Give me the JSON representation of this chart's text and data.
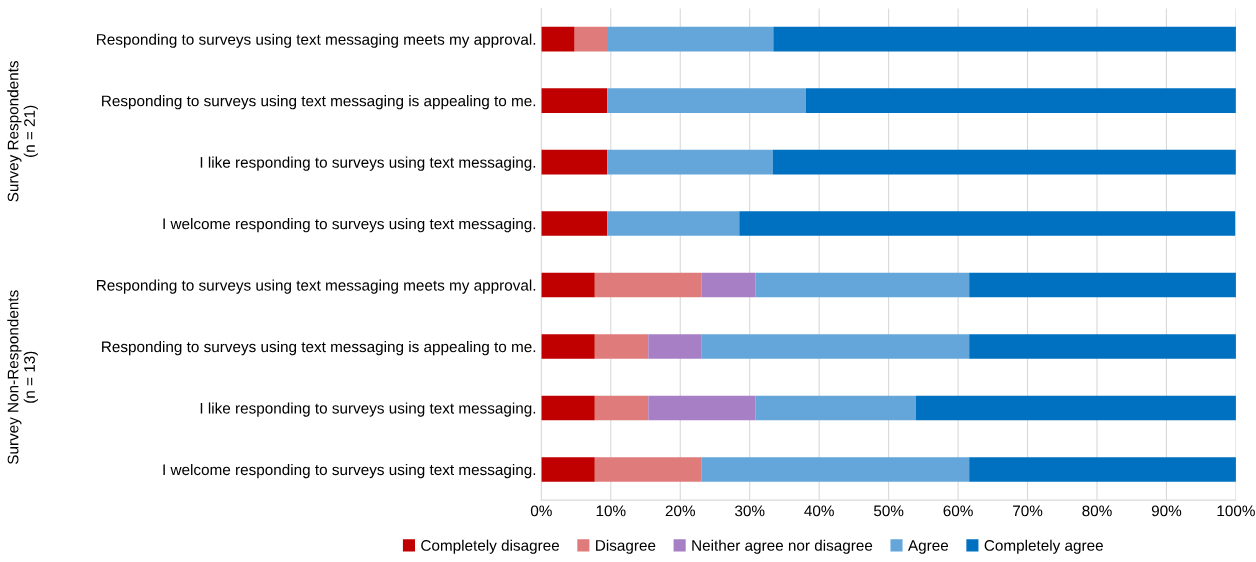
{
  "chart_data": {
    "type": "bar",
    "orientation": "horizontal",
    "stacked": true,
    "categories": [
      "Responding to surveys using text messaging meets my approval.",
      "Responding to surveys using text messaging is appealing to me.",
      "I like responding to surveys using text messaging.",
      "I welcome responding to surveys using text messaging.",
      "Responding to surveys using text messaging meets my approval.",
      "Responding to surveys using text messaging is appealing to me.",
      "I like responding to surveys using text messaging.",
      "I welcome responding to surveys using text messaging."
    ],
    "series": [
      {
        "name": "Completely disagree",
        "color": "#c00000",
        "values": [
          4.8,
          9.5,
          9.5,
          9.5,
          7.7,
          7.7,
          7.7,
          7.7
        ]
      },
      {
        "name": "Disagree",
        "color": "#e07b7b",
        "values": [
          4.8,
          0,
          0,
          0,
          15.4,
          7.7,
          7.7,
          15.4
        ]
      },
      {
        "name": "Neither agree nor disagree",
        "color": "#a67fc4",
        "values": [
          0,
          0,
          0,
          0,
          7.7,
          7.7,
          15.4,
          0
        ]
      },
      {
        "name": "Agree",
        "color": "#64a6d9",
        "values": [
          23.8,
          28.6,
          23.8,
          19.0,
          30.8,
          38.5,
          23.1,
          38.5
        ]
      },
      {
        "name": "Completely agree",
        "color": "#0070c0",
        "values": [
          66.7,
          61.9,
          66.7,
          71.4,
          38.5,
          38.5,
          46.2,
          38.5
        ]
      }
    ],
    "xlim": [
      0,
      100
    ],
    "xticks": [
      {
        "value": 0,
        "label": "0%"
      },
      {
        "value": 10,
        "label": "10%"
      },
      {
        "value": 20,
        "label": "20%"
      },
      {
        "value": 30,
        "label": "30%"
      },
      {
        "value": 40,
        "label": "40%"
      },
      {
        "value": 50,
        "label": "50%"
      },
      {
        "value": 60,
        "label": "60%"
      },
      {
        "value": 70,
        "label": "70%"
      },
      {
        "value": 80,
        "label": "80%"
      },
      {
        "value": 90,
        "label": "90%"
      },
      {
        "value": 100,
        "label": "100%"
      }
    ],
    "grid": "x",
    "legend": "bottom",
    "annotations": [
      "Survey Respondents\n(n = 21)",
      "Survey Non-Respondents\n(n = 13)"
    ]
  }
}
